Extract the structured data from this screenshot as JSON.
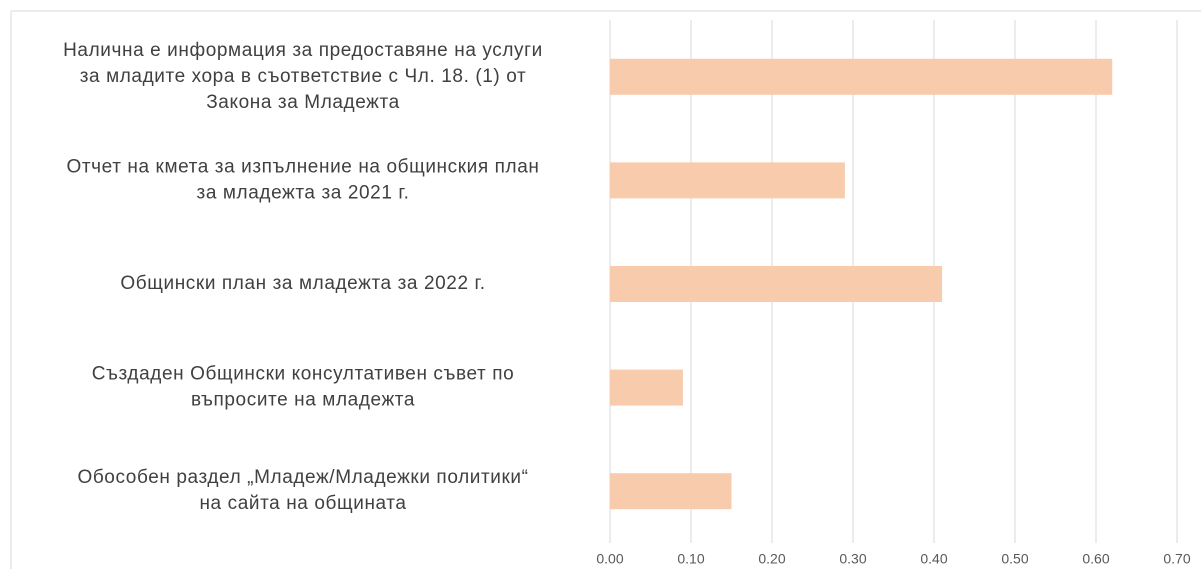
{
  "chart_data": {
    "type": "bar",
    "orientation": "horizontal",
    "categories": [
      [
        "Налична е информация за предоставяне на услуги",
        "за младите хора в съответствие с Чл. 18. (1) от",
        "Закона за Младежта"
      ],
      [
        "Отчет на кмета за изпълнение на общинския план",
        "за младежта за 2021 г."
      ],
      [
        "Общински план за младежта за 2022 г."
      ],
      [
        "Създаден Общински консултативен съвет по",
        "въпросите на младежта"
      ],
      [
        "Обособен раздел „Младеж/Младежки политики“",
        "на сайта на общината"
      ]
    ],
    "values": [
      0.62,
      0.29,
      0.41,
      0.09,
      0.15
    ],
    "color": "#f8cbad",
    "xlim": [
      0,
      0.7
    ],
    "xticks": [
      {
        "value": 0,
        "label": "0.00"
      },
      {
        "value": 0.1,
        "label": "0.10"
      },
      {
        "value": 0.2,
        "label": "0.20"
      },
      {
        "value": 0.3,
        "label": "0.30"
      },
      {
        "value": 0.4,
        "label": "0.40"
      },
      {
        "value": 0.5,
        "label": "0.50"
      },
      {
        "value": 0.6,
        "label": "0.60"
      },
      {
        "value": 0.7,
        "label": "0.70"
      }
    ],
    "grid": true
  }
}
